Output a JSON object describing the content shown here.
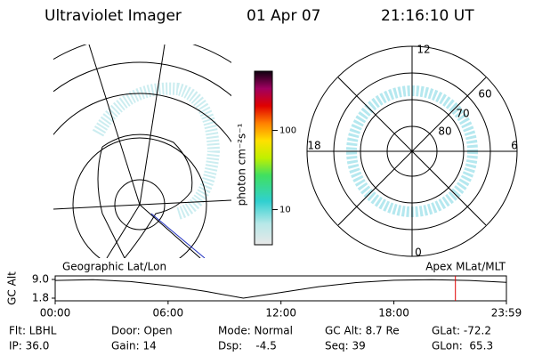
{
  "header": {
    "title": "Ultraviolet Imager",
    "date": "01 Apr 07",
    "time": "21:16:10 UT"
  },
  "colorbar": {
    "label": "photon cm⁻²s⁻¹",
    "log": true,
    "lim": [
      3.6,
      560
    ],
    "ticks": [
      10,
      100
    ]
  },
  "left_panel": {
    "label": "Geographic Lat/Lon"
  },
  "right_panel": {
    "label": "Apex MLat/MLT",
    "mlt_labels": [
      "12",
      "18",
      "6",
      "0"
    ],
    "lat_labels": [
      "60",
      "70",
      "80"
    ]
  },
  "chart_data": {
    "type": "line",
    "ylabel": "GC Alt",
    "x": [
      0,
      2,
      4,
      6,
      8,
      10,
      12,
      14,
      16,
      18,
      20,
      22,
      23.98
    ],
    "series": [
      {
        "name": "GC Alt",
        "color": "#000000",
        "values": [
          8.6,
          8.9,
          8.2,
          6.6,
          4.4,
          1.8,
          4.0,
          6.2,
          7.8,
          8.7,
          8.9,
          8.6,
          7.9
        ]
      }
    ],
    "xlim": [
      0,
      23.98
    ],
    "xticks": [
      {
        "value": 0,
        "label": "00:00"
      },
      {
        "value": 6,
        "label": "06:00"
      },
      {
        "value": 12,
        "label": "12:00"
      },
      {
        "value": 18,
        "label": "18:00"
      },
      {
        "value": 23.98,
        "label": "23:59"
      }
    ],
    "ylim": [
      1.8,
      9.0
    ],
    "yticks": [
      {
        "value": 9.0,
        "label": "9.0"
      },
      {
        "value": 1.8,
        "label": "1.8"
      }
    ],
    "marker": {
      "x": 21.27,
      "color": "#e00000"
    }
  },
  "footer": {
    "rows": [
      [
        "Flt: LBHL",
        "Door: Open",
        "Mode: Normal",
        "GC Alt: 8.7 Re",
        "GLat: -72.2"
      ],
      [
        "IP: 36.0",
        "Gain: 14",
        "Dsp:    -4.5",
        "Seq: 39",
        "GLon:  65.3"
      ]
    ]
  }
}
